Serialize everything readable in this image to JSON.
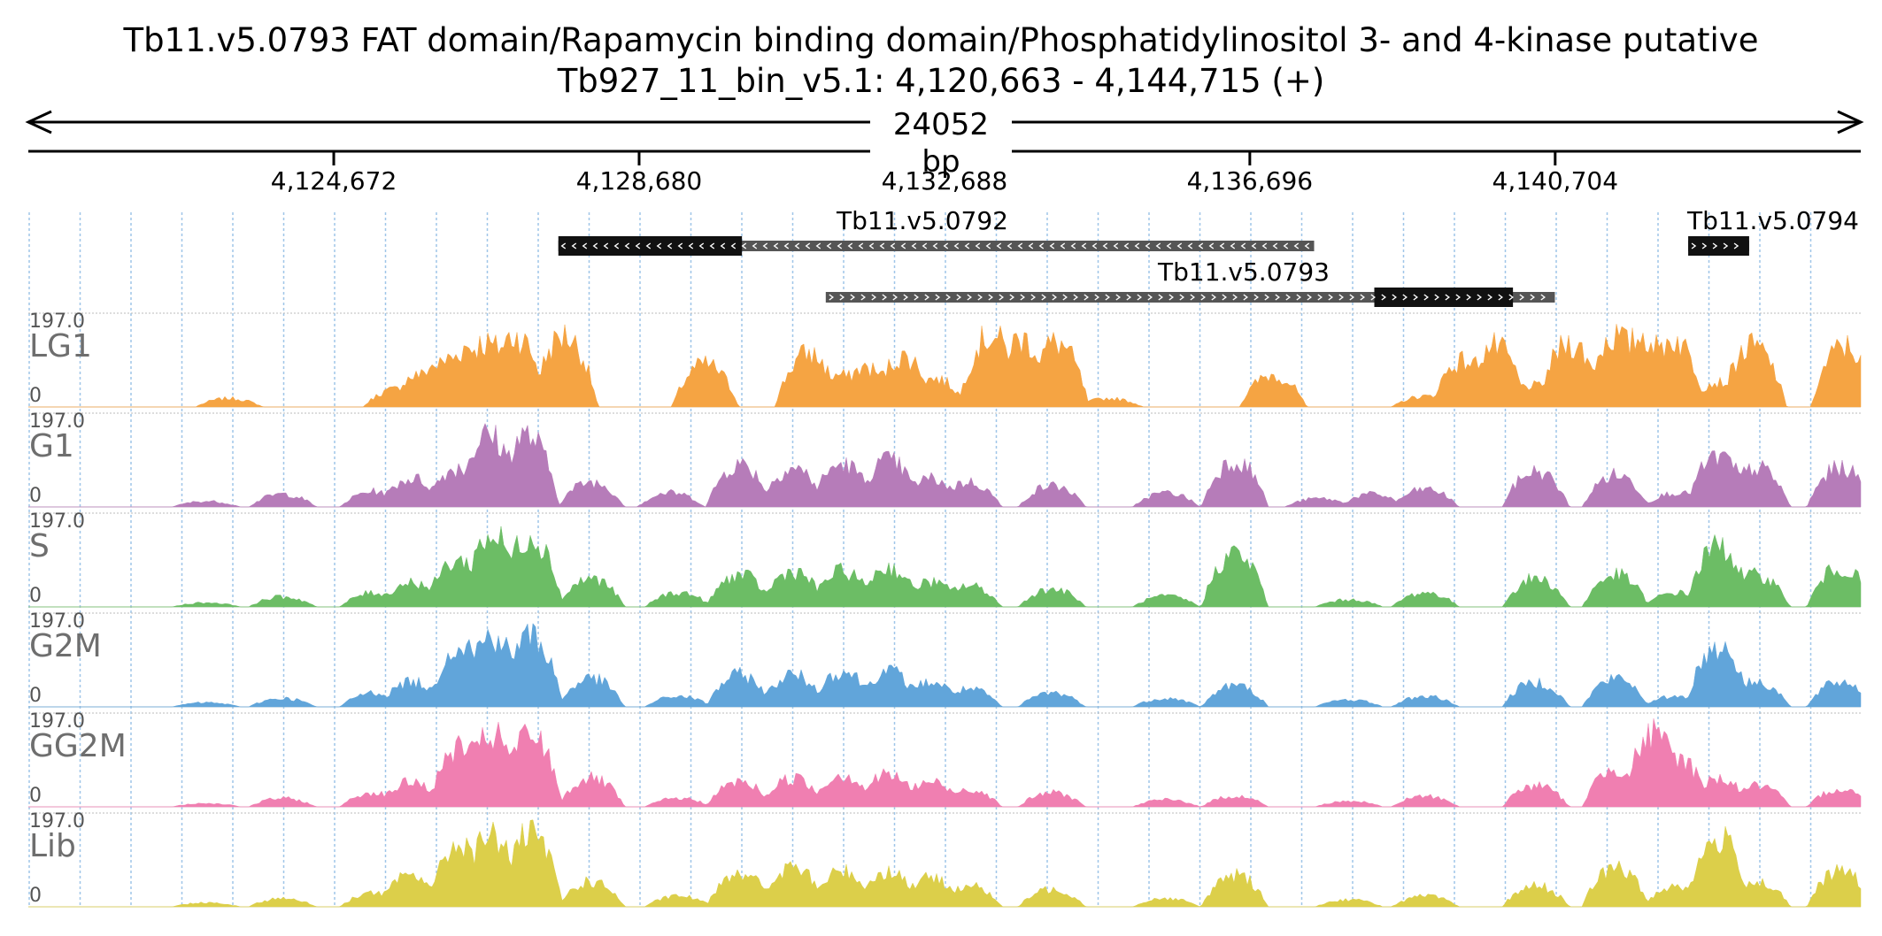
{
  "header": {
    "title": "Tb11.v5.0793  FAT domain/Rapamycin binding domain/Phosphatidylinositol 3- and 4-kinase  putative",
    "subtitle": "Tb927_11_bin_v5.1: 4,120,663 - 4,144,715 (+)",
    "span_label": "24052 bp"
  },
  "chart_data": {
    "type": "area",
    "x_range": [
      4120663,
      4144715
    ],
    "x_ticks": [
      {
        "value": 4124672,
        "label": "4,124,672"
      },
      {
        "value": 4128680,
        "label": "4,128,680"
      },
      {
        "value": 4132688,
        "label": "4,132,688"
      },
      {
        "value": 4136696,
        "label": "4,136,696"
      },
      {
        "value": 4140704,
        "label": "4,140,704"
      }
    ],
    "genes": [
      {
        "name": "Tb11.v5.0792",
        "strand": "-",
        "start": 4127620,
        "end": 4137540,
        "cds_start": 4127620,
        "cds_end": 4130030
      },
      {
        "name": "Tb11.v5.0793",
        "strand": "+",
        "start": 4131130,
        "end": 4140700,
        "cds_start": 4138330,
        "cds_end": 4140150
      },
      {
        "name": "Tb11.v5.0794",
        "strand": "+",
        "start": 4142450,
        "end": 4143250,
        "cds_start": 4142450,
        "cds_end": 4143250
      }
    ],
    "ylim": [
      0,
      197.0
    ],
    "y_max_label": "197.0",
    "y_min_label": "0",
    "tracks": [
      {
        "name": "LG1",
        "color": "#f5a443"
      },
      {
        "name": "G1",
        "color": "#b67cb9"
      },
      {
        "name": "S",
        "color": "#6cbd65"
      },
      {
        "name": "G2M",
        "color": "#61a5da"
      },
      {
        "name": "GG2M",
        "color": "#f07fb1"
      },
      {
        "name": "Lib",
        "color": "#dccf4a"
      }
    ],
    "coverage_profile": {
      "description_units": "bp → fraction of 197.0",
      "peaks_LG1": [
        [
          4123300,
          0.12
        ],
        [
          4125500,
          0.25
        ],
        [
          4125800,
          0.45
        ],
        [
          4126050,
          0.6
        ],
        [
          4126250,
          0.7
        ],
        [
          4126450,
          0.85
        ],
        [
          4126650,
          0.9
        ],
        [
          4126850,
          0.85
        ],
        [
          4127050,
          1.0
        ],
        [
          4127300,
          0.45
        ],
        [
          4127700,
          1.0
        ],
        [
          4129550,
          0.6
        ],
        [
          4130900,
          0.75
        ],
        [
          4131300,
          0.45
        ],
        [
          4131650,
          0.55
        ],
        [
          4132150,
          0.7
        ],
        [
          4132550,
          0.4
        ],
        [
          4133300,
          1.0
        ],
        [
          4133700,
          0.95
        ],
        [
          4134150,
          0.9
        ],
        [
          4134850,
          0.12
        ],
        [
          4137000,
          0.45
        ],
        [
          4139000,
          0.15
        ],
        [
          4139500,
          0.65
        ],
        [
          4139900,
          0.85
        ],
        [
          4140400,
          0.3
        ],
        [
          4140900,
          0.9
        ],
        [
          4141500,
          1.0
        ],
        [
          4141850,
          1.0
        ],
        [
          4142250,
          0.95
        ],
        [
          4142850,
          0.35
        ],
        [
          4143300,
          0.85
        ],
        [
          4144500,
          0.85
        ]
      ],
      "peaks_G1": [
        [
          4123000,
          0.08
        ],
        [
          4124000,
          0.18
        ],
        [
          4125200,
          0.22
        ],
        [
          4125700,
          0.4
        ],
        [
          4126300,
          0.55
        ],
        [
          4126700,
          1.0
        ],
        [
          4127200,
          1.0
        ],
        [
          4128050,
          0.35
        ],
        [
          4129100,
          0.2
        ],
        [
          4130000,
          0.6
        ],
        [
          4130700,
          0.55
        ],
        [
          4131350,
          0.6
        ],
        [
          4131950,
          0.65
        ],
        [
          4132500,
          0.4
        ],
        [
          4133000,
          0.35
        ],
        [
          4134100,
          0.3
        ],
        [
          4135600,
          0.2
        ],
        [
          4136500,
          0.65
        ],
        [
          4137600,
          0.12
        ],
        [
          4138300,
          0.18
        ],
        [
          4139000,
          0.25
        ],
        [
          4140450,
          0.5
        ],
        [
          4141500,
          0.45
        ],
        [
          4142300,
          0.2
        ],
        [
          4142850,
          0.7
        ],
        [
          4143350,
          0.55
        ],
        [
          4144450,
          0.55
        ]
      ],
      "peaks_S": [
        [
          4123000,
          0.06
        ],
        [
          4124000,
          0.14
        ],
        [
          4125200,
          0.2
        ],
        [
          4125700,
          0.35
        ],
        [
          4126300,
          0.65
        ],
        [
          4126750,
          1.0
        ],
        [
          4127250,
          1.0
        ],
        [
          4128050,
          0.4
        ],
        [
          4129200,
          0.2
        ],
        [
          4130000,
          0.45
        ],
        [
          4130700,
          0.5
        ],
        [
          4131350,
          0.5
        ],
        [
          4131950,
          0.55
        ],
        [
          4132500,
          0.35
        ],
        [
          4133000,
          0.3
        ],
        [
          4134100,
          0.25
        ],
        [
          4135600,
          0.15
        ],
        [
          4136500,
          0.75
        ],
        [
          4138000,
          0.1
        ],
        [
          4139000,
          0.2
        ],
        [
          4140450,
          0.4
        ],
        [
          4141500,
          0.45
        ],
        [
          4142300,
          0.2
        ],
        [
          4142850,
          0.85
        ],
        [
          4143350,
          0.45
        ],
        [
          4144450,
          0.55
        ]
      ],
      "peaks_G2M": [
        [
          4123000,
          0.06
        ],
        [
          4124000,
          0.12
        ],
        [
          4125200,
          0.2
        ],
        [
          4125700,
          0.35
        ],
        [
          4126350,
          0.9
        ],
        [
          4126750,
          1.0
        ],
        [
          4127250,
          1.0
        ],
        [
          4128050,
          0.4
        ],
        [
          4129200,
          0.15
        ],
        [
          4130000,
          0.45
        ],
        [
          4130700,
          0.45
        ],
        [
          4131350,
          0.5
        ],
        [
          4131950,
          0.5
        ],
        [
          4132500,
          0.35
        ],
        [
          4133000,
          0.25
        ],
        [
          4134100,
          0.2
        ],
        [
          4135600,
          0.12
        ],
        [
          4136500,
          0.3
        ],
        [
          4138000,
          0.1
        ],
        [
          4139000,
          0.15
        ],
        [
          4140450,
          0.35
        ],
        [
          4141500,
          0.4
        ],
        [
          4142300,
          0.15
        ],
        [
          4142850,
          0.85
        ],
        [
          4143350,
          0.35
        ],
        [
          4144450,
          0.35
        ]
      ],
      "peaks_GG2M": [
        [
          4123000,
          0.05
        ],
        [
          4124000,
          0.12
        ],
        [
          4125200,
          0.2
        ],
        [
          4125700,
          0.35
        ],
        [
          4126350,
          0.85
        ],
        [
          4126750,
          1.0
        ],
        [
          4127250,
          1.0
        ],
        [
          4128050,
          0.4
        ],
        [
          4129200,
          0.12
        ],
        [
          4130000,
          0.35
        ],
        [
          4130700,
          0.4
        ],
        [
          4131350,
          0.45
        ],
        [
          4131950,
          0.45
        ],
        [
          4132500,
          0.35
        ],
        [
          4133000,
          0.25
        ],
        [
          4134100,
          0.2
        ],
        [
          4135600,
          0.1
        ],
        [
          4136500,
          0.15
        ],
        [
          4138000,
          0.08
        ],
        [
          4139000,
          0.15
        ],
        [
          4140450,
          0.3
        ],
        [
          4141500,
          0.55
        ],
        [
          4142000,
          1.0
        ],
        [
          4142300,
          0.7
        ],
        [
          4142850,
          0.4
        ],
        [
          4143350,
          0.3
        ],
        [
          4144450,
          0.25
        ]
      ],
      "peaks_Lib": [
        [
          4123000,
          0.06
        ],
        [
          4124000,
          0.12
        ],
        [
          4125200,
          0.2
        ],
        [
          4125700,
          0.45
        ],
        [
          4126350,
          0.9
        ],
        [
          4126750,
          1.0
        ],
        [
          4127250,
          1.0
        ],
        [
          4128050,
          0.35
        ],
        [
          4129200,
          0.15
        ],
        [
          4130000,
          0.5
        ],
        [
          4130700,
          0.55
        ],
        [
          4131350,
          0.5
        ],
        [
          4131950,
          0.5
        ],
        [
          4132500,
          0.4
        ],
        [
          4133000,
          0.3
        ],
        [
          4134100,
          0.25
        ],
        [
          4135600,
          0.12
        ],
        [
          4136500,
          0.45
        ],
        [
          4138000,
          0.1
        ],
        [
          4139000,
          0.15
        ],
        [
          4140450,
          0.3
        ],
        [
          4141500,
          0.55
        ],
        [
          4142300,
          0.3
        ],
        [
          4142850,
          0.95
        ],
        [
          4143350,
          0.35
        ],
        [
          4144450,
          0.5
        ]
      ]
    }
  }
}
